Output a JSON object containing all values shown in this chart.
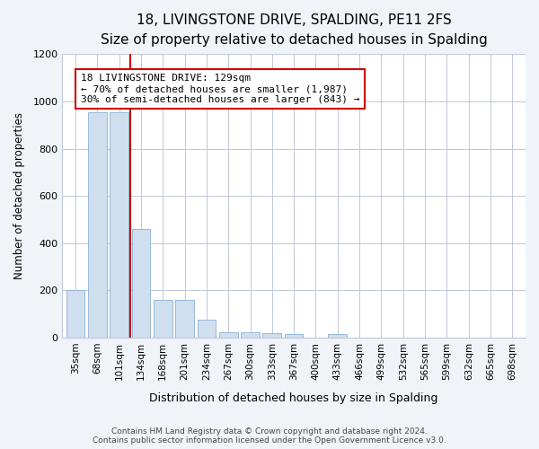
{
  "title": "18, LIVINGSTONE DRIVE, SPALDING, PE11 2FS",
  "subtitle": "Size of property relative to detached houses in Spalding",
  "xlabel": "Distribution of detached houses by size in Spalding",
  "ylabel": "Number of detached properties",
  "categories": [
    "35sqm",
    "68sqm",
    "101sqm",
    "134sqm",
    "168sqm",
    "201sqm",
    "234sqm",
    "267sqm",
    "300sqm",
    "333sqm",
    "367sqm",
    "400sqm",
    "433sqm",
    "466sqm",
    "499sqm",
    "532sqm",
    "565sqm",
    "599sqm",
    "632sqm",
    "665sqm",
    "698sqm"
  ],
  "values": [
    200,
    955,
    955,
    460,
    160,
    160,
    75,
    25,
    22,
    20,
    15,
    0,
    15,
    0,
    0,
    0,
    0,
    0,
    0,
    0,
    0
  ],
  "bar_color": "#d0dff0",
  "bar_edge_color": "#8ab0d0",
  "vline_x": 2.5,
  "annotation_text": "18 LIVINGSTONE DRIVE: 129sqm\n← 70% of detached houses are smaller (1,987)\n30% of semi-detached houses are larger (843) →",
  "annotation_box_color": "white",
  "annotation_box_edge_color": "#cc0000",
  "vline_color": "#cc0000",
  "ylim": [
    0,
    1200
  ],
  "yticks": [
    0,
    200,
    400,
    600,
    800,
    1000,
    1200
  ],
  "footer_line1": "Contains HM Land Registry data © Crown copyright and database right 2024.",
  "footer_line2": "Contains public sector information licensed under the Open Government Licence v3.0.",
  "bg_color": "#f0f4f8",
  "axes_bg_color": "white",
  "grid_color": "#c0c8d8",
  "title_fontsize": 11,
  "subtitle_fontsize": 9
}
